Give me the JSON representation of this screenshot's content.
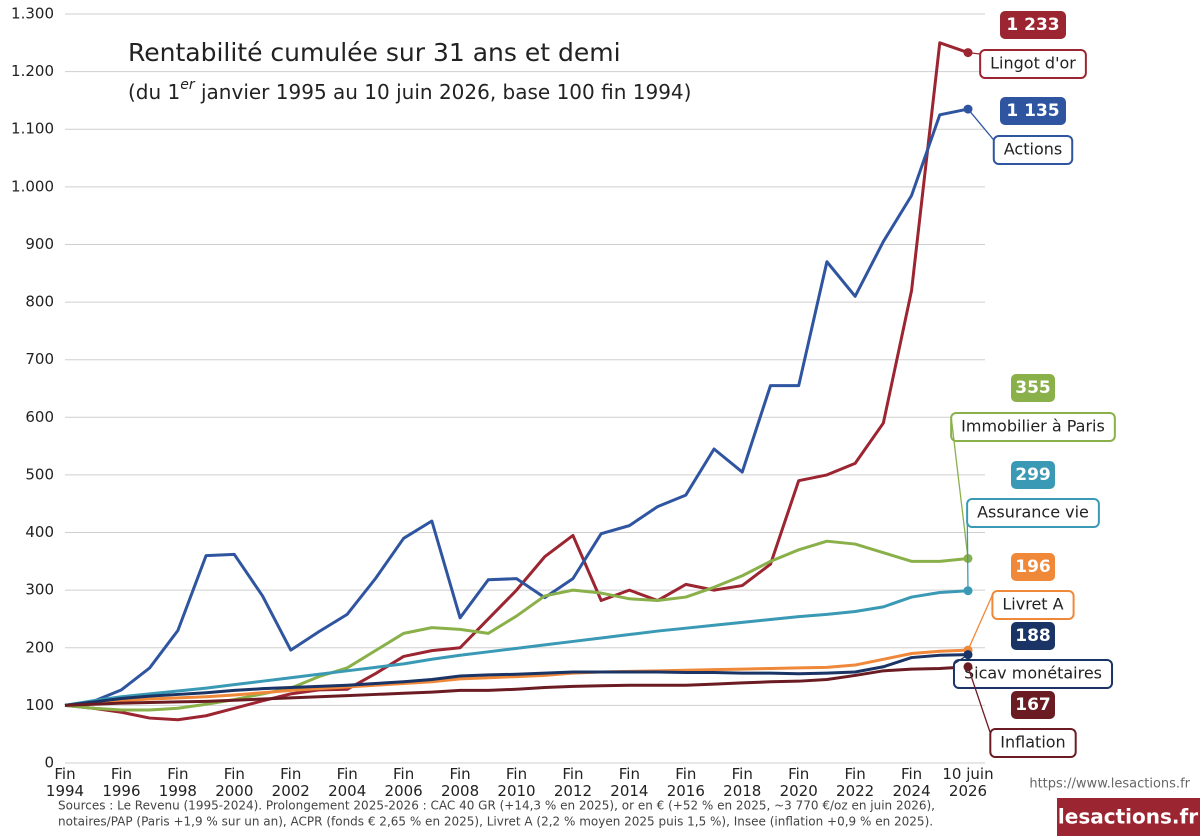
{
  "chart_data": {
    "type": "line",
    "title": "Rentabilité cumulée sur 31 ans et demi",
    "subtitle": [
      "(du 1",
      "er",
      " janvier 1995 au 10 juin 2026, base 100 fin 1994)"
    ],
    "categories": [
      "Fin 1994",
      null,
      "Fin 1996",
      null,
      "Fin 1998",
      null,
      "Fin 2000",
      null,
      "Fin 2002",
      null,
      "Fin 2004",
      null,
      "Fin 2006",
      null,
      "Fin 2008",
      null,
      "Fin 2010",
      null,
      "Fin 2012",
      null,
      "Fin 2014",
      null,
      "Fin 2016",
      null,
      "Fin 2018",
      null,
      "Fin 2020",
      null,
      "Fin 2022",
      null,
      "Fin 2024",
      null,
      "10 juin 2026"
    ],
    "ylim": [
      0,
      1300
    ],
    "yticks": [
      0,
      100,
      200,
      300,
      400,
      500,
      600,
      700,
      800,
      900,
      {
        "value": 1000,
        "label": "1.000"
      },
      {
        "value": 1100,
        "label": "1.100"
      },
      {
        "value": 1200,
        "label": "1.200"
      },
      {
        "value": 1300,
        "label": "1.300"
      }
    ],
    "grid": true,
    "series": [
      {
        "name": "Lingot d'or",
        "color": "#9b2530",
        "values": [
          100,
          95,
          88,
          78,
          75,
          82,
          95,
          108,
          120,
          127,
          128,
          155,
          185,
          195,
          200,
          250,
          300,
          358,
          395,
          282,
          300,
          282,
          310,
          300,
          308,
          345,
          490,
          500,
          520,
          590,
          820,
          1250,
          1233
        ],
        "value_labels": [
          null,
          null,
          null,
          null,
          null,
          null,
          null,
          null,
          null,
          null,
          null,
          null,
          null,
          null,
          null,
          null,
          null,
          null,
          null,
          null,
          null,
          null,
          null,
          null,
          null,
          null,
          null,
          null,
          null,
          null,
          null,
          null,
          "1 233"
        ]
      },
      {
        "name": "Actions",
        "color": "#2f55a0",
        "values": [
          100,
          107,
          127,
          165,
          230,
          360,
          362,
          290,
          196,
          228,
          258,
          320,
          390,
          420,
          252,
          318,
          320,
          287,
          320,
          398,
          412,
          445,
          465,
          545,
          505,
          655,
          655,
          870,
          810,
          905,
          985,
          1125,
          1135
        ],
        "value_labels": [
          null,
          null,
          null,
          null,
          null,
          null,
          null,
          null,
          null,
          null,
          null,
          null,
          null,
          null,
          null,
          null,
          null,
          null,
          null,
          null,
          null,
          null,
          null,
          null,
          null,
          null,
          null,
          null,
          null,
          null,
          null,
          null,
          "1 135"
        ]
      },
      {
        "name": "Immobilier à Paris",
        "color": "#8ab04a",
        "values": [
          100,
          95,
          92,
          92,
          95,
          102,
          110,
          120,
          130,
          150,
          165,
          195,
          225,
          235,
          232,
          225,
          255,
          290,
          300,
          295,
          285,
          282,
          288,
          305,
          325,
          350,
          370,
          385,
          380,
          365,
          350,
          350,
          355
        ]
      },
      {
        "name": "Assurance vie",
        "color": "#3a9ab5",
        "values": [
          100,
          108,
          115,
          120,
          125,
          130,
          136,
          142,
          148,
          154,
          160,
          166,
          172,
          180,
          187,
          193,
          199,
          205,
          211,
          217,
          223,
          229,
          234,
          239,
          244,
          249,
          254,
          258,
          263,
          271,
          288,
          296,
          299
        ]
      },
      {
        "name": "Livret A",
        "color": "#f0883a",
        "values": [
          100,
          104,
          108,
          111,
          113,
          115,
          118,
          122,
          126,
          129,
          132,
          135,
          138,
          141,
          146,
          148,
          150,
          152,
          156,
          158,
          159,
          160,
          161,
          162,
          163,
          164,
          165,
          166,
          170,
          180,
          190,
          194,
          196
        ]
      },
      {
        "name": "Sicav monétaires",
        "color": "#1a3466",
        "values": [
          100,
          106,
          112,
          116,
          119,
          122,
          126,
          129,
          131,
          133,
          135,
          138,
          141,
          145,
          151,
          153,
          154,
          156,
          158,
          158,
          158,
          158,
          157,
          157,
          156,
          156,
          155,
          156,
          158,
          167,
          183,
          187,
          188
        ]
      },
      {
        "name": "Inflation",
        "color": "#6b1c22",
        "values": [
          100,
          102,
          104,
          105,
          106,
          107,
          109,
          111,
          113,
          115,
          117,
          119,
          121,
          123,
          126,
          126,
          128,
          131,
          133,
          134,
          135,
          135,
          135,
          137,
          139,
          141,
          142,
          145,
          152,
          160,
          163,
          164,
          167
        ]
      }
    ],
    "source": [
      "Sources : Le Revenu (1995-2024). Prolongement 2025-2026 : CAC 40 GR (+14,3 % en 2025), or en € (+52 % en 2025, ~3 770 €/oz en juin 2026),",
      "notaires/PAP (Paris +1,9 % sur un an), ACPR (fonds € 2,65 % en 2025), Livret A (2,2 % moyen 2025 puis 1,5 %), Insee (inflation +0,9 % en 2025)."
    ],
    "url": "https://www.lesactions.fr",
    "brand": "lesactions.fr"
  }
}
